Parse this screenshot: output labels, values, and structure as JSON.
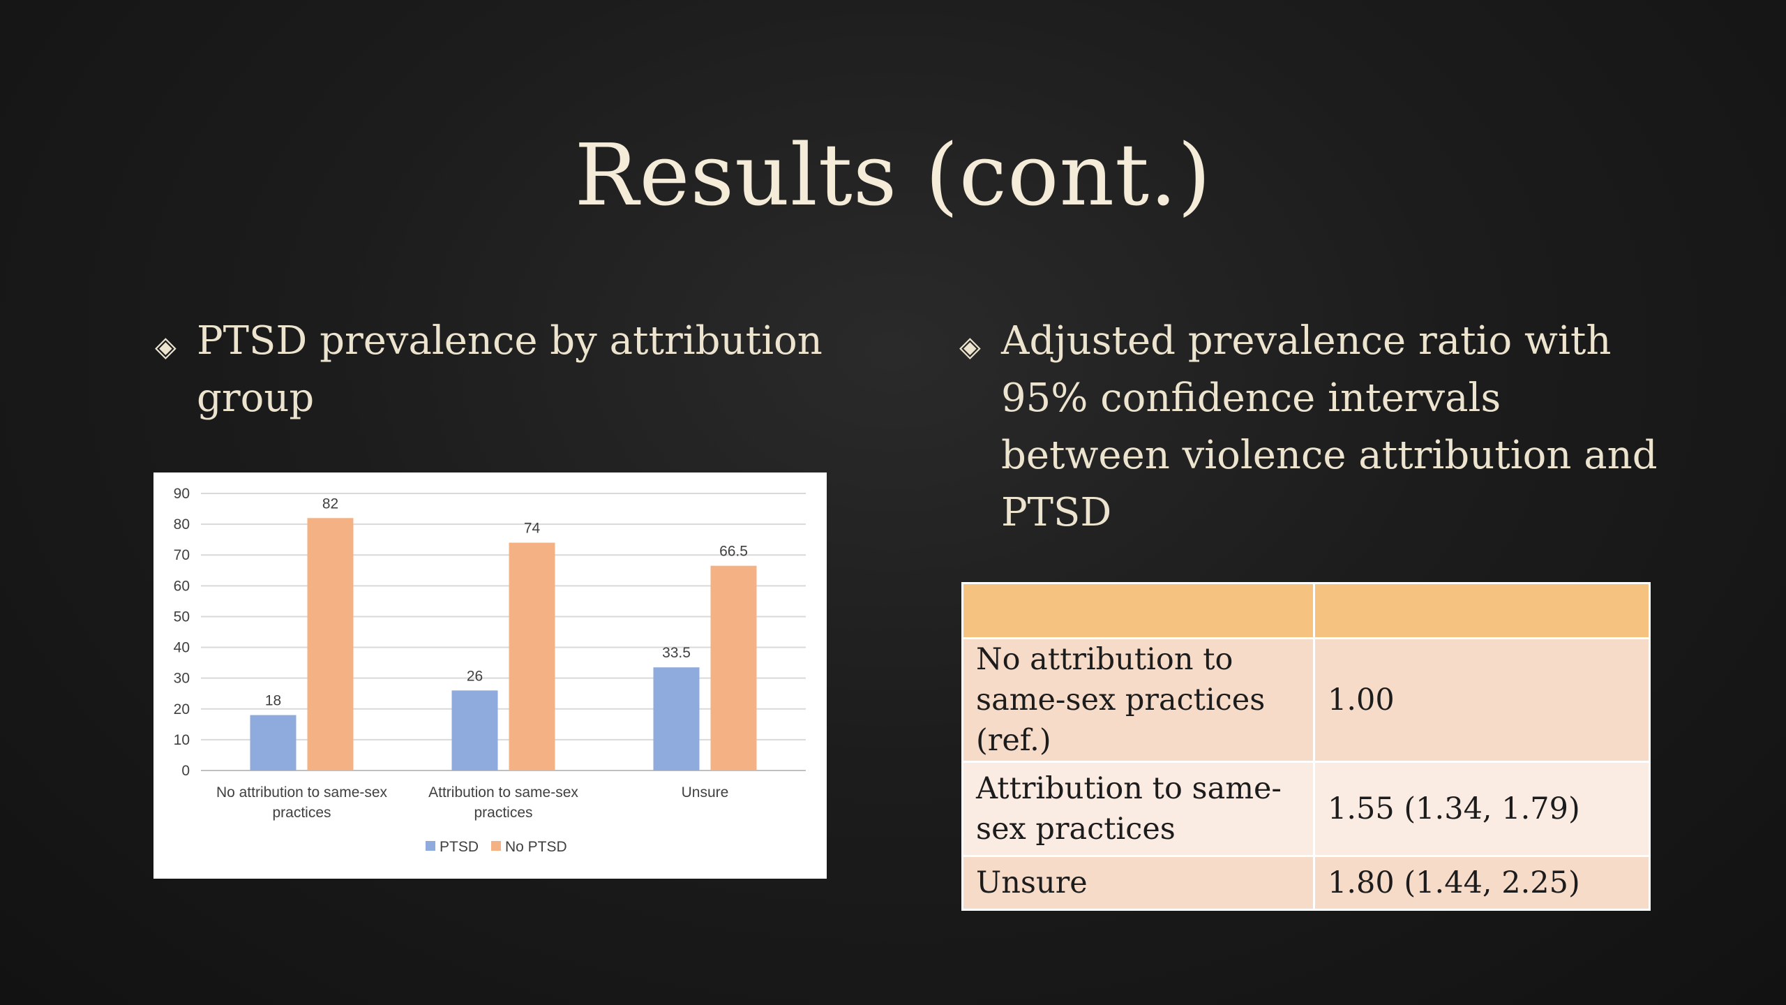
{
  "slide": {
    "title": "Results (cont.)",
    "bullet_left": "PTSD prevalence by attribution group",
    "bullet_right": "Adjusted prevalence ratio with 95% confidence intervals between violence attribution and PTSD",
    "bullet_icon": "diamond-bullet-icon"
  },
  "chart_data": {
    "type": "bar",
    "title": "",
    "xlabel": "",
    "ylabel": "",
    "categories": [
      [
        "No attribution to same-sex",
        "practices"
      ],
      [
        "Attribution to same-sex",
        "practices"
      ],
      [
        "Unsure"
      ]
    ],
    "series": [
      {
        "name": "PTSD",
        "color": "#8faadc",
        "values": [
          18,
          26,
          33.5
        ],
        "labels": [
          "18",
          "26",
          "33.5"
        ]
      },
      {
        "name": "No PTSD",
        "color": "#f4b183",
        "values": [
          82,
          74,
          66.5
        ],
        "labels": [
          "82",
          "74",
          "66.5"
        ]
      }
    ],
    "ylim": [
      0,
      90
    ],
    "yticks": [
      "0",
      "10",
      "20",
      "30",
      "40",
      "50",
      "60",
      "70",
      "80",
      "90"
    ],
    "grid": true,
    "legend": "bottom-center"
  },
  "table": {
    "header": [
      "",
      ""
    ],
    "rows": [
      {
        "label": "No attribution to same-sex practices (ref.)",
        "value": "1.00"
      },
      {
        "label": "Attribution to same-sex practices",
        "value": "1.55 (1.34, 1.79)"
      },
      {
        "label": "Unsure",
        "value": "1.80 (1.44, 2.25)"
      }
    ]
  }
}
